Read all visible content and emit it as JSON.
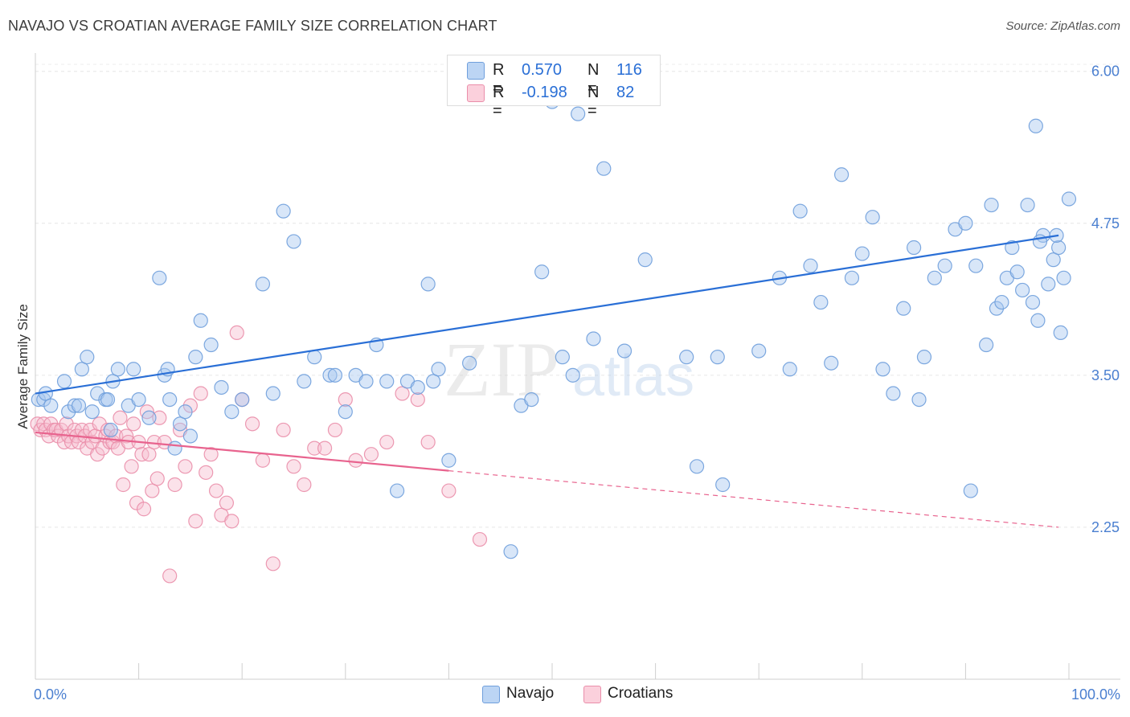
{
  "title": "NAVAJO VS CROATIAN AVERAGE FAMILY SIZE CORRELATION CHART",
  "source": "Source: ZipAtlas.com",
  "watermark": "ZIPatlas",
  "colors": {
    "navajo_fill": "#a9c8f0",
    "navajo_stroke": "#6f9fdc",
    "navajo_line": "#2a6fd6",
    "croatian_fill": "#f7bfd0",
    "croatian_stroke": "#ea8eaa",
    "croatian_line": "#e8638e",
    "tick": "#4a7fd0"
  },
  "legend_top": {
    "rows": [
      {
        "series": "Navajo",
        "r_label": "R =",
        "r_value": "0.570",
        "n_label": "N =",
        "n_value": "116"
      },
      {
        "series": "Croatians",
        "r_label": "R =",
        "r_value": "-0.198",
        "n_label": "N =",
        "n_value": "82"
      }
    ]
  },
  "legend_bottom": [
    "Navajo",
    "Croatians"
  ],
  "chart_data": {
    "type": "scatter",
    "title": "NAVAJO VS CROATIAN AVERAGE FAMILY SIZE CORRELATION CHART",
    "xlabel": "",
    "ylabel": "Average Family Size",
    "xlim": [
      0,
      100
    ],
    "ylim": [
      1.0,
      6.15
    ],
    "x_tick_labels": [
      "0.0%",
      "100.0%"
    ],
    "y_ticks": [
      2.25,
      3.5,
      4.75,
      6.0
    ],
    "y_tick_labels": [
      "2.25",
      "3.50",
      "4.75",
      "6.00"
    ],
    "series": [
      {
        "name": "Navajo",
        "r": 0.57,
        "n": 116,
        "trend": {
          "x0": 0,
          "y0": 3.35,
          "x1": 99,
          "y1": 4.65,
          "solid_to": 99
        },
        "points": [
          [
            0.3,
            3.3
          ],
          [
            0.8,
            3.3
          ],
          [
            1.0,
            3.35
          ],
          [
            1.5,
            3.25
          ],
          [
            2.8,
            3.45
          ],
          [
            3.2,
            3.2
          ],
          [
            3.8,
            3.25
          ],
          [
            4.2,
            3.25
          ],
          [
            4.5,
            3.55
          ],
          [
            5.0,
            3.65
          ],
          [
            5.5,
            3.2
          ],
          [
            6.0,
            3.35
          ],
          [
            6.8,
            3.3
          ],
          [
            7.0,
            3.3
          ],
          [
            7.3,
            3.05
          ],
          [
            7.5,
            3.45
          ],
          [
            8.0,
            3.55
          ],
          [
            9.0,
            3.25
          ],
          [
            9.5,
            3.55
          ],
          [
            10.0,
            3.3
          ],
          [
            11.0,
            3.15
          ],
          [
            12.0,
            4.3
          ],
          [
            12.5,
            3.5
          ],
          [
            12.8,
            3.55
          ],
          [
            13.0,
            3.3
          ],
          [
            13.5,
            2.9
          ],
          [
            14.0,
            3.1
          ],
          [
            14.5,
            3.2
          ],
          [
            15.0,
            3.0
          ],
          [
            15.5,
            3.65
          ],
          [
            16.0,
            3.95
          ],
          [
            17.0,
            3.75
          ],
          [
            18.0,
            3.4
          ],
          [
            19.0,
            3.2
          ],
          [
            20.0,
            3.3
          ],
          [
            22.0,
            4.25
          ],
          [
            23.0,
            3.35
          ],
          [
            24.0,
            4.85
          ],
          [
            25.0,
            4.6
          ],
          [
            26.0,
            3.45
          ],
          [
            27.0,
            3.65
          ],
          [
            28.5,
            3.5
          ],
          [
            29.0,
            3.5
          ],
          [
            30.0,
            3.2
          ],
          [
            31.0,
            3.5
          ],
          [
            32.0,
            3.45
          ],
          [
            33.0,
            3.75
          ],
          [
            34.0,
            3.45
          ],
          [
            35.0,
            2.55
          ],
          [
            36.0,
            3.45
          ],
          [
            37.0,
            3.4
          ],
          [
            38.0,
            4.25
          ],
          [
            38.5,
            3.45
          ],
          [
            39.0,
            3.55
          ],
          [
            40.0,
            2.8
          ],
          [
            42.0,
            3.6
          ],
          [
            46.0,
            2.05
          ],
          [
            47.0,
            3.25
          ],
          [
            48.0,
            3.3
          ],
          [
            49.0,
            4.35
          ],
          [
            50.0,
            5.75
          ],
          [
            51.0,
            3.65
          ],
          [
            52.0,
            3.5
          ],
          [
            52.5,
            5.65
          ],
          [
            54.0,
            3.8
          ],
          [
            55.0,
            5.2
          ],
          [
            57.0,
            3.7
          ],
          [
            59.0,
            4.45
          ],
          [
            63.0,
            3.65
          ],
          [
            64.0,
            2.75
          ],
          [
            66.0,
            3.65
          ],
          [
            66.5,
            2.6
          ],
          [
            70.0,
            3.7
          ],
          [
            72.0,
            4.3
          ],
          [
            73.0,
            3.55
          ],
          [
            74.0,
            4.85
          ],
          [
            75.0,
            4.4
          ],
          [
            76.0,
            4.1
          ],
          [
            77.0,
            3.6
          ],
          [
            78.0,
            5.15
          ],
          [
            79.0,
            4.3
          ],
          [
            80.0,
            4.5
          ],
          [
            81.0,
            4.8
          ],
          [
            82.0,
            3.55
          ],
          [
            83.0,
            3.35
          ],
          [
            84.0,
            4.05
          ],
          [
            85.0,
            4.55
          ],
          [
            86.0,
            3.65
          ],
          [
            87.0,
            4.3
          ],
          [
            88.0,
            4.4
          ],
          [
            89.0,
            4.7
          ],
          [
            90.0,
            4.75
          ],
          [
            90.5,
            2.55
          ],
          [
            91.0,
            4.4
          ],
          [
            92.0,
            3.75
          ],
          [
            93.0,
            4.05
          ],
          [
            94.0,
            4.3
          ],
          [
            95.0,
            4.35
          ],
          [
            96.0,
            4.9
          ],
          [
            96.5,
            4.1
          ],
          [
            97.0,
            3.95
          ],
          [
            97.5,
            4.65
          ],
          [
            98.0,
            4.25
          ],
          [
            98.5,
            4.45
          ],
          [
            99.0,
            4.55
          ],
          [
            99.5,
            4.3
          ],
          [
            100.0,
            4.95
          ],
          [
            92.5,
            4.9
          ],
          [
            94.5,
            4.55
          ],
          [
            96.8,
            5.55
          ],
          [
            97.2,
            4.6
          ],
          [
            95.5,
            4.2
          ],
          [
            93.5,
            4.1
          ],
          [
            98.8,
            4.65
          ],
          [
            99.2,
            3.85
          ],
          [
            85.5,
            3.3
          ]
        ]
      },
      {
        "name": "Croatians",
        "r": -0.198,
        "n": 82,
        "trend": {
          "x0": 0,
          "y0": 3.03,
          "x1": 99,
          "y1": 2.25,
          "solid_to": 40
        },
        "points": [
          [
            0.2,
            3.1
          ],
          [
            0.5,
            3.05
          ],
          [
            0.8,
            3.1
          ],
          [
            1.0,
            3.05
          ],
          [
            1.3,
            3.0
          ],
          [
            1.5,
            3.1
          ],
          [
            1.8,
            3.05
          ],
          [
            2.0,
            3.05
          ],
          [
            2.2,
            3.0
          ],
          [
            2.5,
            3.05
          ],
          [
            2.8,
            2.95
          ],
          [
            3.0,
            3.1
          ],
          [
            3.2,
            3.0
          ],
          [
            3.5,
            2.95
          ],
          [
            3.8,
            3.05
          ],
          [
            4.0,
            3.0
          ],
          [
            4.2,
            2.95
          ],
          [
            4.5,
            3.05
          ],
          [
            4.8,
            3.0
          ],
          [
            5.0,
            2.9
          ],
          [
            5.3,
            3.05
          ],
          [
            5.5,
            2.95
          ],
          [
            5.8,
            3.0
          ],
          [
            6.0,
            2.85
          ],
          [
            6.2,
            3.1
          ],
          [
            6.5,
            2.9
          ],
          [
            6.8,
            3.0
          ],
          [
            7.0,
            3.05
          ],
          [
            7.2,
            2.95
          ],
          [
            7.5,
            2.95
          ],
          [
            7.8,
            3.0
          ],
          [
            8.0,
            2.9
          ],
          [
            8.2,
            3.15
          ],
          [
            8.5,
            2.6
          ],
          [
            8.8,
            3.0
          ],
          [
            9.0,
            2.95
          ],
          [
            9.3,
            2.75
          ],
          [
            9.5,
            3.1
          ],
          [
            9.8,
            2.45
          ],
          [
            10.0,
            2.95
          ],
          [
            10.3,
            2.85
          ],
          [
            10.5,
            2.4
          ],
          [
            10.8,
            3.2
          ],
          [
            11.0,
            2.85
          ],
          [
            11.3,
            2.55
          ],
          [
            11.5,
            2.95
          ],
          [
            11.8,
            2.65
          ],
          [
            12.0,
            3.15
          ],
          [
            12.5,
            2.95
          ],
          [
            13.0,
            1.85
          ],
          [
            13.5,
            2.6
          ],
          [
            14.0,
            3.05
          ],
          [
            14.5,
            2.75
          ],
          [
            15.0,
            3.25
          ],
          [
            15.5,
            2.3
          ],
          [
            16.0,
            3.35
          ],
          [
            16.5,
            2.7
          ],
          [
            17.0,
            2.85
          ],
          [
            17.5,
            2.55
          ],
          [
            18.0,
            2.35
          ],
          [
            18.5,
            2.45
          ],
          [
            19.0,
            2.3
          ],
          [
            19.5,
            3.85
          ],
          [
            20.0,
            3.3
          ],
          [
            21.0,
            3.1
          ],
          [
            22.0,
            2.8
          ],
          [
            23.0,
            1.95
          ],
          [
            24.0,
            3.05
          ],
          [
            25.0,
            2.75
          ],
          [
            26.0,
            2.6
          ],
          [
            27.0,
            2.9
          ],
          [
            28.0,
            2.9
          ],
          [
            29.0,
            3.05
          ],
          [
            30.0,
            3.3
          ],
          [
            31.0,
            2.8
          ],
          [
            32.5,
            2.85
          ],
          [
            34.0,
            2.95
          ],
          [
            35.5,
            3.35
          ],
          [
            37.0,
            3.3
          ],
          [
            38.0,
            2.95
          ],
          [
            40.0,
            2.55
          ],
          [
            43.0,
            2.15
          ]
        ]
      }
    ]
  }
}
